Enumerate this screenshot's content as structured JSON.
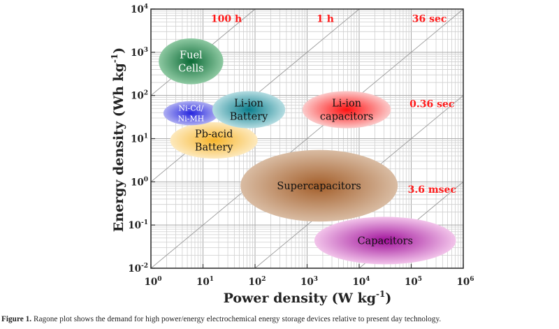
{
  "chart_data": {
    "type": "scatter",
    "subtype": "ragone-region-plot",
    "xlabel": "Power density (W kg",
    "xlabel_sup": "-1",
    "xlabel_end": ")",
    "ylabel": "Energy density (Wh kg",
    "ylabel_sup": "-1",
    "ylabel_end": ")",
    "xscale": "log",
    "yscale": "log",
    "xlim": [
      1,
      1000000
    ],
    "ylim": [
      0.01,
      10000
    ],
    "x_tick_exponents": [
      "0",
      "1",
      "2",
      "3",
      "4",
      "5",
      "6"
    ],
    "y_tick_exponents": [
      "-2",
      "-1",
      "0",
      "1",
      "2",
      "3",
      "4"
    ],
    "tick_base": "10",
    "grid": true,
    "regions": [
      {
        "name": "Supercapacitors",
        "lines": [
          "Supercapacitors"
        ],
        "log_x_center": 3.23,
        "log_y_center": -0.09,
        "log_x_halfspan": 1.51,
        "log_y_halfspan": 0.83,
        "color_center": "#a35e2a",
        "color_edge": "#d9bca3",
        "text_color": "#111111"
      },
      {
        "name": "Capacitors",
        "lines": [
          "Capacitors"
        ],
        "log_x_center": 4.5,
        "log_y_center": -1.36,
        "log_x_halfspan": 1.36,
        "log_y_halfspan": 0.55,
        "color_center": "#a0109a",
        "color_edge": "#f2c4ea",
        "text_color": "#111111"
      },
      {
        "name": "Pb-acid Battery",
        "lines": [
          "Pb-acid",
          "Battery"
        ],
        "log_x_center": 1.21,
        "log_y_center": 0.96,
        "log_x_halfspan": 0.84,
        "log_y_halfspan": 0.42,
        "color_center": "#f7b52c",
        "color_edge": "#fde9bd",
        "text_color": "#111111",
        "label_offset": [
          0,
          1
        ]
      },
      {
        "name": "Ni-Cd/Ni-MH",
        "lines": [
          "Ni-Cd/",
          "Ni-MH"
        ],
        "log_x_center": 0.77,
        "log_y_center": 1.59,
        "log_x_halfspan": 0.53,
        "log_y_halfspan": 0.28,
        "color_center": "#2626de",
        "color_edge": "#aeaef2",
        "text_color": "#ffffff",
        "small": true
      },
      {
        "name": "Li-ion Battery",
        "lines": [
          "Li-ion",
          "Battery"
        ],
        "log_x_center": 1.88,
        "log_y_center": 1.67,
        "log_x_halfspan": 0.7,
        "log_y_halfspan": 0.43,
        "color_center": "#0a7d8c",
        "color_edge": "#b5dde2",
        "text_color": "#111111"
      },
      {
        "name": "Li-ion capacitors",
        "lines": [
          "Li-ion",
          "capacitors"
        ],
        "log_x_center": 3.76,
        "log_y_center": 1.67,
        "log_x_halfspan": 0.85,
        "log_y_halfspan": 0.43,
        "color_center": "#ff1010",
        "color_edge": "#fbcaca",
        "text_color": "#111111"
      },
      {
        "name": "Fuel Cells",
        "lines": [
          "Fuel",
          "Cells"
        ],
        "log_x_center": 0.77,
        "log_y_center": 2.79,
        "log_x_halfspan": 0.62,
        "log_y_halfspan": 0.53,
        "color_center": "#0b6a36",
        "color_edge": "#8ec9a2",
        "text_color": "#ffffff"
      }
    ],
    "time_constant_lines_hours": [
      100,
      1,
      0.01,
      0.0001,
      1e-06
    ],
    "annotations": [
      {
        "text": "100 h",
        "log_x": 1.45,
        "log_y": 3.7
      },
      {
        "text": "1 h",
        "log_x": 3.35,
        "log_y": 3.7
      },
      {
        "text": "36 sec",
        "log_x": 5.35,
        "log_y": 3.7
      },
      {
        "text": "0.36 sec",
        "log_x": 5.4,
        "log_y": 1.73
      },
      {
        "text": "3.6 msec",
        "log_x": 5.4,
        "log_y": -0.25
      }
    ],
    "annotation_color": "#ff1a1a"
  },
  "caption": {
    "label": "Figure 1.",
    "text": " Ragone plot shows the demand for high power/energy electrochemical energy storage devices relative to present day technology."
  }
}
